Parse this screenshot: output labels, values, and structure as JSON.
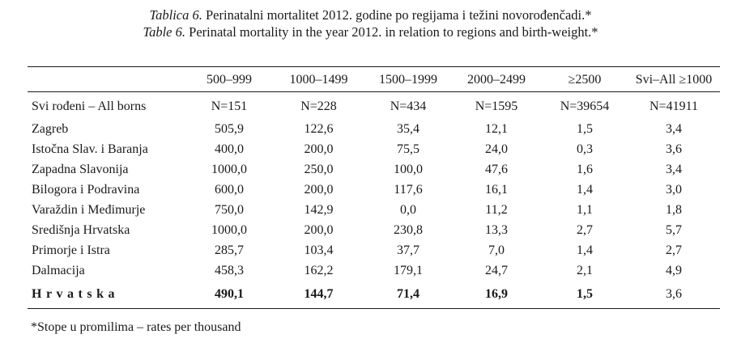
{
  "caption": {
    "hr_label": "Tablica 6.",
    "hr_text": "Perinatalni mortalitet 2012. godine po regijama i težini novorođenčadi.*",
    "en_label": "Table 6.",
    "en_text": "Perinatal mortality in the year 2012. in relation to regions and birth-weight.*"
  },
  "table": {
    "headers": [
      "",
      "500–999",
      "1000–1499",
      "1500–1999",
      "2000–2499",
      "≥2500",
      "Svi–All ≥1000"
    ],
    "rows": [
      [
        "Svi rođeni – All borns",
        "N=151",
        "N=228",
        "N=434",
        "N=1595",
        "N=39654",
        "N=41911"
      ],
      [
        "Zagreb",
        "505,9",
        "122,6",
        "35,4",
        "12,1",
        "1,5",
        "3,4"
      ],
      [
        "Istočna Slav. i Baranja",
        "400,0",
        "200,0",
        "75,5",
        "24,0",
        "0,3",
        "3,6"
      ],
      [
        "Zapadna Slavonija",
        "1000,0",
        "250,0",
        "100,0",
        "47,6",
        "1,6",
        "3,4"
      ],
      [
        "Bilogora i Podravina",
        "600,0",
        "200,0",
        "117,6",
        "16,1",
        "1,4",
        "3,0"
      ],
      [
        "Varaždin i Međimurje",
        "750,0",
        "142,9",
        "0,0",
        "11,2",
        "1,1",
        "1,8"
      ],
      [
        "Središnja Hrvatska",
        "1000,0",
        "200,0",
        "230,8",
        "13,3",
        "2,7",
        "5,7"
      ],
      [
        "Primorje i Istra",
        "285,7",
        "103,4",
        "37,7",
        "7,0",
        "1,4",
        "2,7"
      ],
      [
        "Dalmacija",
        "458,3",
        "162,2",
        "179,1",
        "24,7",
        "2,1",
        "4,9"
      ],
      [
        "Hrvatska",
        "490,1",
        "144,7",
        "71,4",
        "16,9",
        "1,5",
        "3,6"
      ]
    ]
  },
  "footnote": "*Stope u promilima – rates per thousand"
}
